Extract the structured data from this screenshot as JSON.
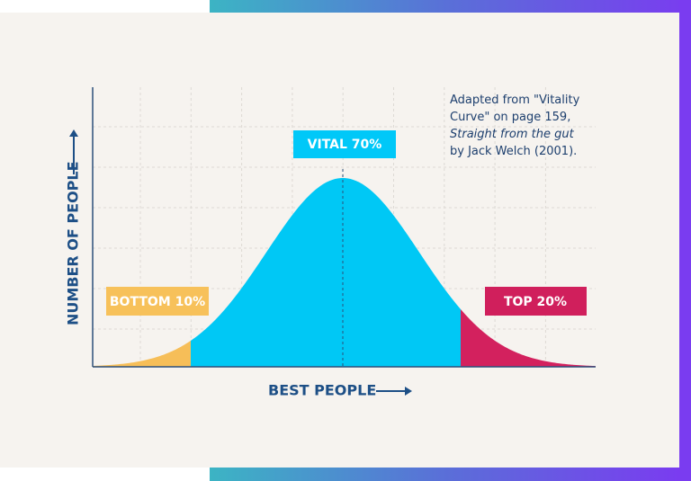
{
  "labels": {
    "vital": "VITAL 70%",
    "bottom": "BOTTOM 10%",
    "top": "TOP 20%"
  },
  "axes": {
    "y_label": "NUMBER OF PEOPLE",
    "x_label": "BEST PEOPLE"
  },
  "citation": {
    "lines": [
      "Adapted from \"Vitality",
      "Curve\" on page 159,",
      "Straight from the gut",
      "by Jack Welch (2001)."
    ]
  }
}
